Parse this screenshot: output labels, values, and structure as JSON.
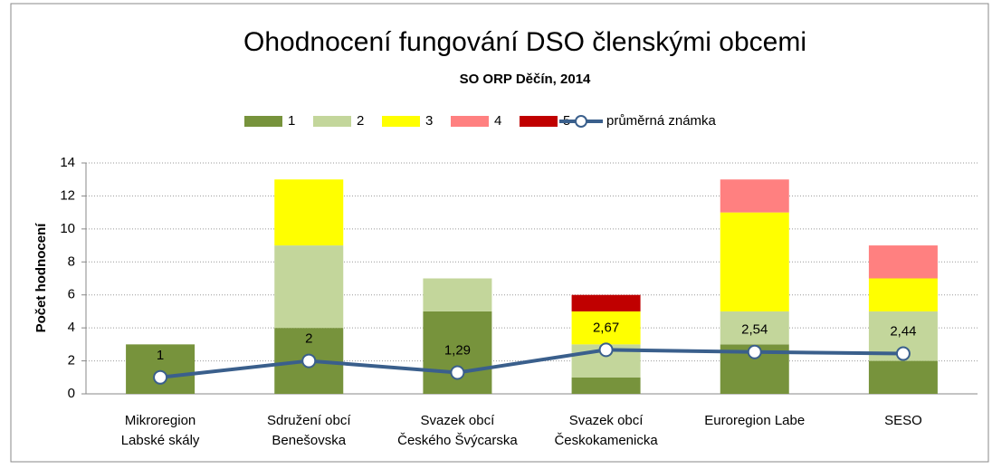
{
  "chart_data": {
    "type": "bar",
    "title": "Ohodnocení fungování DSO členskými obcemi",
    "subtitle": "SO ORP Děčín, 2014",
    "ylabel": "Počet hodnocení",
    "categories": [
      [
        "Mikroregion",
        "Labské skály"
      ],
      [
        "Sdružení obcí",
        "Benešovska"
      ],
      [
        "Svazek obcí",
        "Českého Švýcarska"
      ],
      [
        "Svazek obcí",
        "Českokamenicka"
      ],
      [
        "Euroregion Labe"
      ],
      [
        "SESO"
      ]
    ],
    "series": [
      {
        "name": "1",
        "color": "#77933c",
        "values": [
          3,
          4,
          5,
          1,
          3,
          2
        ]
      },
      {
        "name": "2",
        "color": "#c3d69b",
        "values": [
          0,
          5,
          2,
          2,
          2,
          3
        ]
      },
      {
        "name": "3",
        "color": "#ffff00",
        "values": [
          0,
          4,
          0,
          2,
          6,
          2
        ]
      },
      {
        "name": "4",
        "color": "#ff8080",
        "values": [
          0,
          0,
          0,
          0,
          2,
          2
        ]
      },
      {
        "name": "5",
        "color": "#c00000",
        "values": [
          0,
          0,
          0,
          1,
          0,
          0
        ]
      }
    ],
    "line": {
      "name": "průměrná známka",
      "color": "#3a5f8c",
      "values": [
        1,
        2,
        1.29,
        2.67,
        2.54,
        2.44
      ],
      "value_labels": [
        "1",
        "2",
        "1,29",
        "2,67",
        "2,54",
        "2,44"
      ]
    },
    "ylim": [
      0,
      14
    ],
    "yticks": [
      0,
      2,
      4,
      6,
      8,
      10,
      12,
      14
    ],
    "grid": true,
    "legend": "top"
  }
}
